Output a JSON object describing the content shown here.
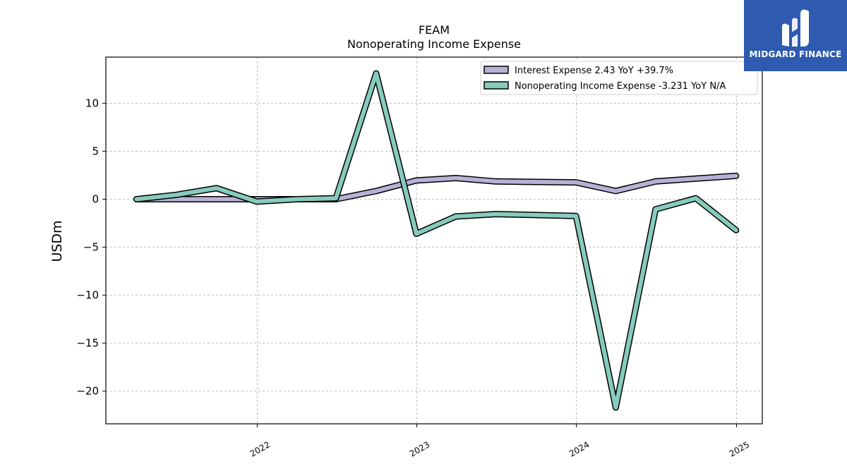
{
  "brand": {
    "name": "MIDGARD FINANCE",
    "colors": {
      "background": "#2e5bb0",
      "text": "#ffffff"
    }
  },
  "chart_data": {
    "type": "line",
    "title": "FEAM",
    "subtitle": "Nonoperating Income Expense",
    "xlabel": "",
    "ylabel": "USDm",
    "x_ticks": [
      "2022",
      "2023",
      "2024",
      "2025"
    ],
    "y_ticks": [
      "−20",
      "−15",
      "−10",
      "−5",
      "0",
      "5",
      "10"
    ],
    "xlim": [
      "2021-01-20",
      "2025-03-01"
    ],
    "ylim": [
      -23.4,
      14.8
    ],
    "grid": true,
    "legend_position": "top-right",
    "x": [
      "2021-03-31",
      "2021-06-30",
      "2021-09-30",
      "2021-12-31",
      "2022-03-31",
      "2022-06-30",
      "2022-09-30",
      "2022-12-31",
      "2023-03-31",
      "2023-06-30",
      "2023-09-30",
      "2023-12-31",
      "2024-03-31",
      "2024-06-30",
      "2024-09-30",
      "2024-12-31"
    ],
    "series": [
      {
        "name": "Interest Expense",
        "legend_label": "Interest Expense  2.43 YoY +39.7%",
        "color": "#b6b2d6",
        "values": [
          0.0,
          0.0,
          0.0,
          0.0,
          0.0,
          0.0,
          0.85,
          1.95,
          2.2,
          1.85,
          1.8,
          1.75,
          0.85,
          1.85,
          2.15,
          2.43
        ]
      },
      {
        "name": "Nonoperating Income Expense",
        "legend_label": "Nonoperating Income Expense  -3.231 YoY N/A",
        "color": "#86cbbc",
        "values": [
          0.0,
          0.45,
          1.15,
          -0.25,
          0.0,
          0.1,
          13.1,
          -3.6,
          -1.8,
          -1.55,
          -1.65,
          -1.75,
          -21.7,
          -1.05,
          0.1,
          -3.231
        ]
      }
    ]
  }
}
